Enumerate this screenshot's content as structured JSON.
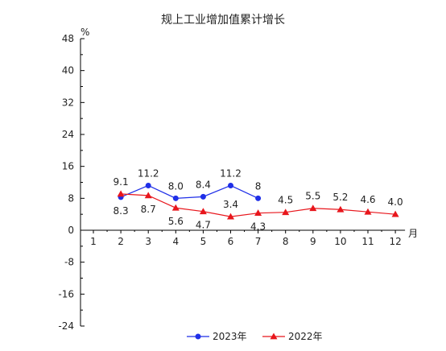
{
  "chart_data": {
    "type": "line",
    "title": "规上工业增加值累计增长",
    "ylabel": "%",
    "xlabel": "月",
    "ylim": [
      -24,
      48
    ],
    "yticks": [
      48,
      40,
      32,
      24,
      16,
      8,
      0,
      -8,
      -16,
      -24
    ],
    "categories": [
      "1",
      "2",
      "3",
      "4",
      "5",
      "6",
      "7",
      "8",
      "9",
      "10",
      "11",
      "12"
    ],
    "series": [
      {
        "name": "2023年",
        "color": "#1f2fe8",
        "marker": "circle",
        "x": [
          "2",
          "3",
          "4",
          "5",
          "6",
          "7"
        ],
        "values": [
          8.3,
          11.2,
          8.0,
          8.4,
          11.2,
          8
        ],
        "labels": [
          "8.3",
          "11.2",
          "8.0",
          "8.4",
          "11.2",
          "8"
        ]
      },
      {
        "name": "2022年",
        "color": "#e8161c",
        "marker": "triangle",
        "x": [
          "2",
          "3",
          "4",
          "5",
          "6",
          "7",
          "8",
          "9",
          "10",
          "11",
          "12"
        ],
        "values": [
          9.1,
          8.7,
          5.6,
          4.7,
          3.4,
          4.3,
          4.5,
          5.5,
          5.2,
          4.6,
          4.0
        ],
        "labels": [
          "9.1",
          "8.7",
          "5.6",
          "4.7",
          "3.4",
          "4.3",
          "4.5",
          "5.5",
          "5.2",
          "4.6",
          "4.0"
        ]
      }
    ],
    "grid": false,
    "legend": "bottom"
  }
}
